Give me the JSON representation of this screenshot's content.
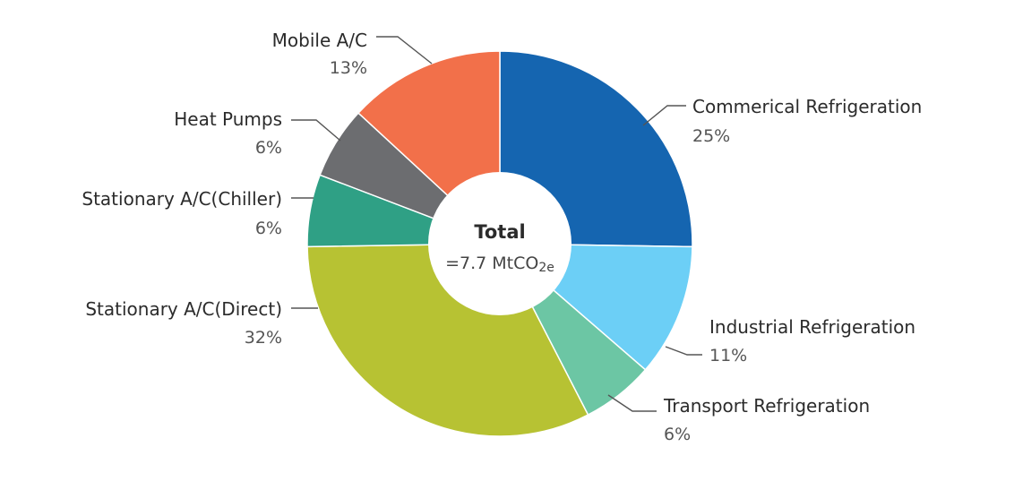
{
  "chart_data": {
    "type": "pie",
    "donut": true,
    "center": {
      "title": "Total",
      "value": "=7.7 MtCO2e"
    },
    "slices": [
      {
        "label": "Commerical Refrigeration",
        "percent_label": "25%",
        "value": 25,
        "color": "#1565b0"
      },
      {
        "label": "Industrial Refrigeration",
        "percent_label": "11%",
        "value": 11,
        "color": "#6ccff6"
      },
      {
        "label": "Transport Refrigeration",
        "percent_label": "6%",
        "value": 6,
        "color": "#6cc6a4"
      },
      {
        "label": "Stationary A/C(Direct)",
        "percent_label": "32%",
        "value": 32,
        "color": "#b7c233"
      },
      {
        "label": "Stationary A/C(Chiller)",
        "percent_label": "6%",
        "value": 6,
        "color": "#2fa085"
      },
      {
        "label": "Heat Pumps",
        "percent_label": "6%",
        "value": 6,
        "color": "#6c6d70"
      },
      {
        "label": "Mobile A/C",
        "percent_label": "13%",
        "value": 13,
        "color": "#f2704a"
      }
    ]
  }
}
